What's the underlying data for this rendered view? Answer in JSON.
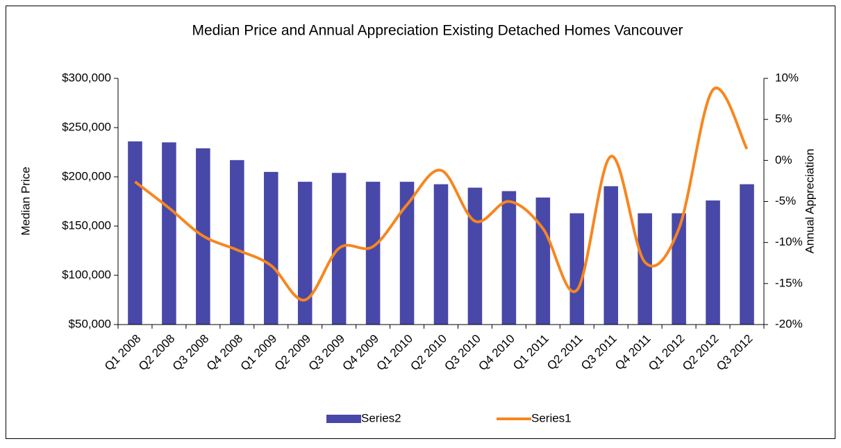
{
  "chart_data": {
    "type": "bar-line",
    "title": "Median Price and Annual Appreciation Existing Detached Homes Vancouver",
    "y_label": "Median Price",
    "y2_label": "Annual Appreciation",
    "categories": [
      "Q1 2008",
      "Q2 2008",
      "Q3 2008",
      "Q4 2008",
      "Q1 2009",
      "Q2 2009",
      "Q3 2009",
      "Q4 2009",
      "Q1 2010",
      "Q2 2010",
      "Q3 2010",
      "Q4 2010",
      "Q1 2011",
      "Q2 2011",
      "Q3 2011",
      "Q4 2011",
      "Q1 2012",
      "Q2 2012",
      "Q3 2012"
    ],
    "series": [
      {
        "name": "Series2",
        "type": "bar",
        "color": "#4848a8",
        "values": [
          236000,
          235000,
          229000,
          217000,
          205000,
          195000,
          204000,
          195000,
          195000,
          192500,
          189000,
          185500,
          179000,
          163000,
          190500,
          163000,
          163000,
          176000,
          192500
        ]
      },
      {
        "name": "Series1",
        "type": "line",
        "axis": "y2",
        "color": "#f7861f",
        "values": [
          -2.6,
          -5.8,
          -9.2,
          -10.9,
          -12.8,
          -17,
          -10.7,
          -10.5,
          -5.4,
          -1.2,
          -7.4,
          -5,
          -8.3,
          -15.8,
          0.5,
          -12.4,
          -8.3,
          8.6,
          1.4
        ]
      }
    ],
    "ylim": [
      50000,
      300000
    ],
    "yticks": [
      {
        "value": 50000,
        "label": "$50,000"
      },
      {
        "value": 100000,
        "label": "$100,000"
      },
      {
        "value": 150000,
        "label": "$150,000"
      },
      {
        "value": 200000,
        "label": "$200,000"
      },
      {
        "value": 250000,
        "label": "$250,000"
      },
      {
        "value": 300000,
        "label": "$300,000"
      }
    ],
    "y2lim": [
      -20,
      10
    ],
    "y2ticks": [
      {
        "value": -20,
        "label": "-20%"
      },
      {
        "value": -15,
        "label": "-15%"
      },
      {
        "value": -10,
        "label": "-10%"
      },
      {
        "value": -5,
        "label": "-5%"
      },
      {
        "value": 0,
        "label": "0%"
      },
      {
        "value": 5,
        "label": "5%"
      },
      {
        "value": 10,
        "label": "10%"
      }
    ],
    "legend": "bottom"
  }
}
